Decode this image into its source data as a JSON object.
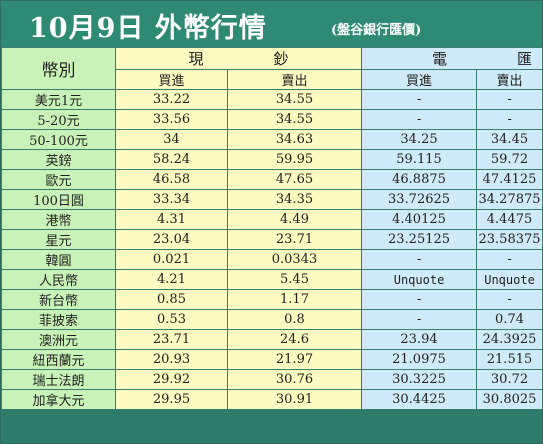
{
  "title": {
    "main": "10月9日 外幣行情",
    "source": "(盤谷銀行匯價)"
  },
  "headers": {
    "currency": "幣別",
    "cash": "現鈔",
    "wire": "電匯",
    "buy": "買進",
    "sell": "賣出"
  },
  "rows": [
    {
      "name": "美元1元",
      "cash_buy": "33.22",
      "cash_sell": "34.55",
      "wire_buy": "-",
      "wire_sell": "-"
    },
    {
      "name": "5-20元",
      "cash_buy": "33.56",
      "cash_sell": "34.55",
      "wire_buy": "-",
      "wire_sell": "-"
    },
    {
      "name": "50-100元",
      "cash_buy": "34",
      "cash_sell": "34.63",
      "wire_buy": "34.25",
      "wire_sell": "34.45"
    },
    {
      "name": "英鎊",
      "cash_buy": "58.24",
      "cash_sell": "59.95",
      "wire_buy": "59.115",
      "wire_sell": "59.72"
    },
    {
      "name": "歐元",
      "cash_buy": "46.58",
      "cash_sell": "47.65",
      "wire_buy": "46.8875",
      "wire_sell": "47.4125"
    },
    {
      "name": "100日圓",
      "cash_buy": "33.34",
      "cash_sell": "34.35",
      "wire_buy": "33.72625",
      "wire_sell": "34.27875"
    },
    {
      "name": "港幣",
      "cash_buy": "4.31",
      "cash_sell": "4.49",
      "wire_buy": "4.40125",
      "wire_sell": "4.4475"
    },
    {
      "name": "星元",
      "cash_buy": "23.04",
      "cash_sell": "23.71",
      "wire_buy": "23.25125",
      "wire_sell": "23.58375"
    },
    {
      "name": "韓圓",
      "cash_buy": "0.021",
      "cash_sell": "0.0343",
      "wire_buy": "-",
      "wire_sell": "-"
    },
    {
      "name": "人民幣",
      "cash_buy": "4.21",
      "cash_sell": "5.45",
      "wire_buy": "Unquote",
      "wire_sell": "Unquote"
    },
    {
      "name": "新台幣",
      "cash_buy": "0.85",
      "cash_sell": "1.17",
      "wire_buy": "-",
      "wire_sell": "-"
    },
    {
      "name": "菲披索",
      "cash_buy": "0.53",
      "cash_sell": "0.8",
      "wire_buy": "-",
      "wire_sell": "0.74"
    },
    {
      "name": "澳洲元",
      "cash_buy": "23.71",
      "cash_sell": "24.6",
      "wire_buy": "23.94",
      "wire_sell": "24.3925"
    },
    {
      "name": "紐西蘭元",
      "cash_buy": "20.93",
      "cash_sell": "21.97",
      "wire_buy": "21.0975",
      "wire_sell": "21.515"
    },
    {
      "name": "瑞士法朗",
      "cash_buy": "29.92",
      "cash_sell": "30.76",
      "wire_buy": "30.3225",
      "wire_sell": "30.72"
    },
    {
      "name": "加拿大元",
      "cash_buy": "29.95",
      "cash_sell": "30.91",
      "wire_buy": "30.4425",
      "wire_sell": "30.8025"
    }
  ],
  "colors": {
    "title_bg": "#2e8a73",
    "name_col": "#c9f2b9",
    "cash_col": "#fcfbc2",
    "wire_col": "#cfeaf9",
    "grid": "#3a7f6e"
  }
}
